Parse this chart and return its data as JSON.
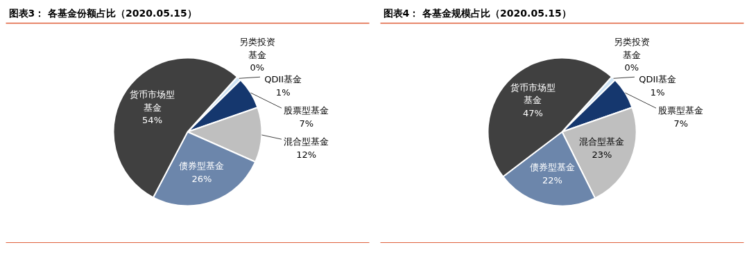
{
  "chart_data": [
    {
      "type": "pie",
      "title": "图表3：  各基金份额占比（2020.05.15）",
      "categories": [
        "另类投资基金",
        "QDII基金",
        "股票型基金",
        "混合型基金",
        "债券型基金",
        "货币市场型基金"
      ],
      "values": [
        0,
        1,
        7,
        12,
        26,
        54
      ],
      "value_labels": [
        "0%",
        "1%",
        "7%",
        "12%",
        "26%",
        "54%"
      ],
      "colors": [
        "#f2c4c4",
        "#cfe4f5",
        "#15376e",
        "#bfbfbf",
        "#6c86ab",
        "#404040"
      ]
    },
    {
      "type": "pie",
      "title": "图表4：  各基金规模占比（2020.05.15）",
      "categories": [
        "另类投资基金",
        "QDII基金",
        "股票型基金",
        "混合型基金",
        "债券型基金",
        "货币市场型基金"
      ],
      "values": [
        0,
        1,
        7,
        23,
        22,
        47
      ],
      "value_labels": [
        "0%",
        "1%",
        "7%",
        "23%",
        "22%",
        "47%"
      ],
      "colors": [
        "#f2c4c4",
        "#cfe4f5",
        "#15376e",
        "#bfbfbf",
        "#6c86ab",
        "#404040"
      ]
    }
  ]
}
